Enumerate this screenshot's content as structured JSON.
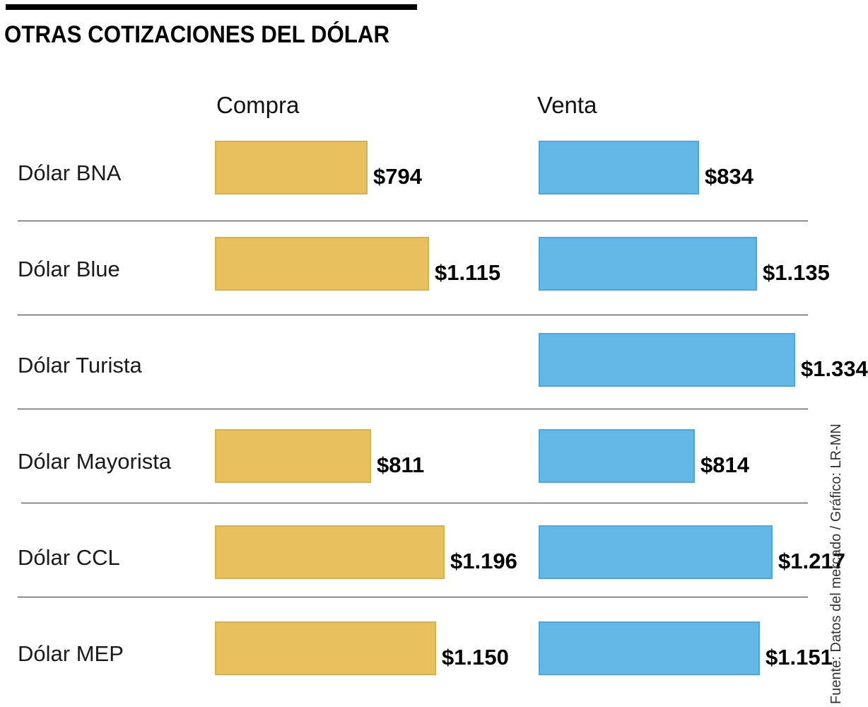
{
  "chart_data": {
    "type": "bar",
    "title": "OTRAS COTIZACIONES DEL DÓLAR",
    "categories": [
      "Dólar BNA",
      "Dólar Blue",
      "Dólar Turista",
      "Dólar Mayorista",
      "Dólar CCL",
      "Dólar MEP"
    ],
    "series": [
      {
        "name": "Compra",
        "values": [
          794,
          1115,
          null,
          811,
          1196,
          1150
        ],
        "labels": [
          "$794",
          "$1.115",
          "",
          "$811",
          "$1.196",
          "$1.150"
        ]
      },
      {
        "name": "Venta",
        "values": [
          834,
          1135,
          1334,
          814,
          1217,
          1151
        ],
        "labels": [
          "$834",
          "$1.135",
          "$1.334",
          "$814",
          "$1.217",
          "$1.151"
        ]
      }
    ],
    "colors": {
      "compra": "#e8c05e",
      "venta": "#64b8e8"
    },
    "legend": "column-headers",
    "grid": false
  },
  "source_text": "Fuente: Datos del mercado / Gráfico: LR-MN"
}
